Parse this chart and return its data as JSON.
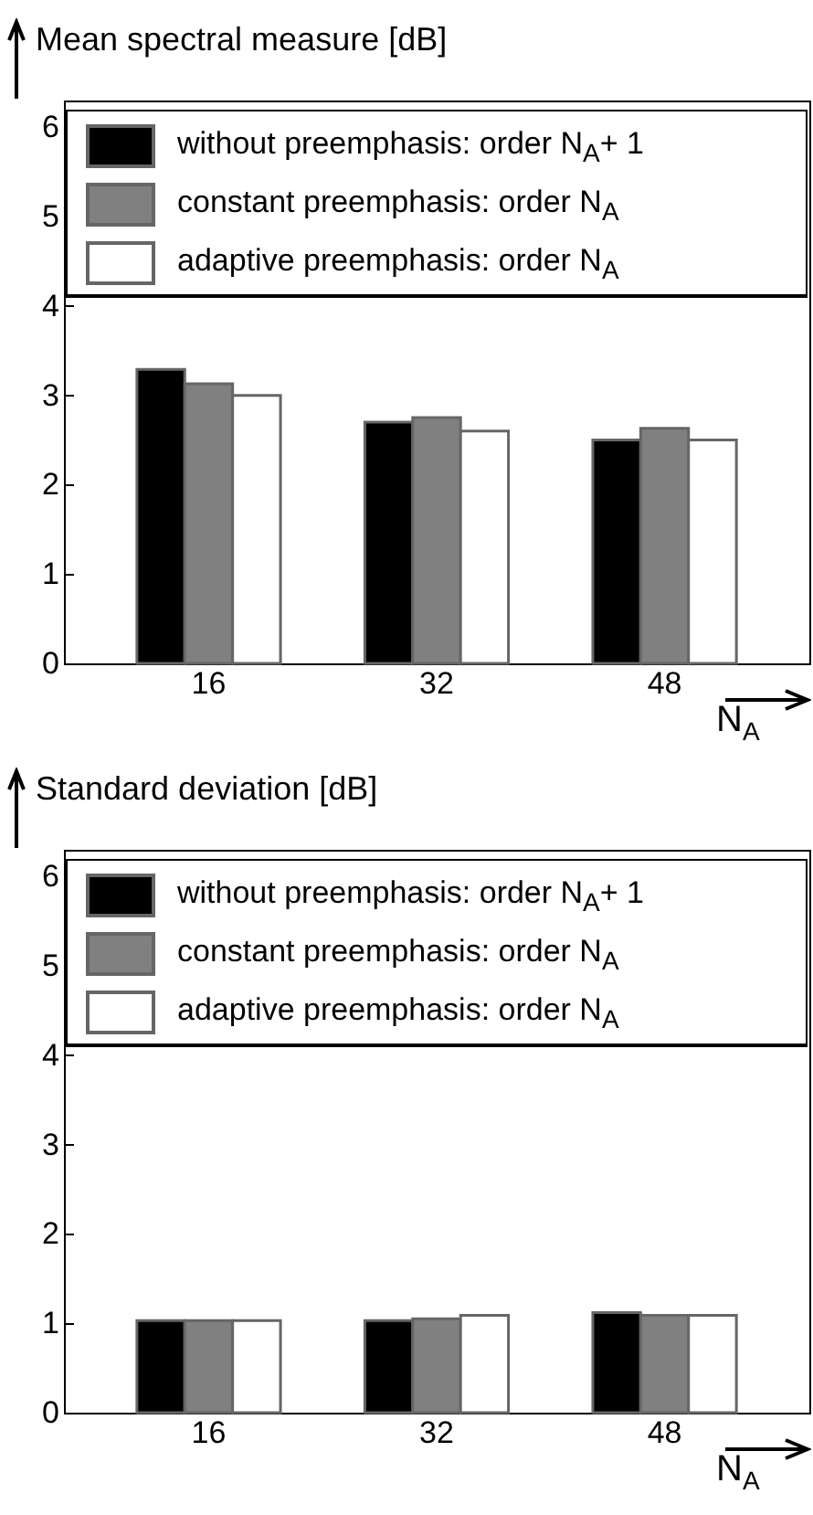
{
  "chart_data": [
    {
      "type": "bar",
      "ylabel": "Mean spectral measure [dB]",
      "xlabel": "N$_{A}$",
      "categories": [
        "16",
        "32",
        "48"
      ],
      "series": [
        {
          "name": "without preemphasis: order N$_{A}$+ 1",
          "color": "#000000",
          "values": [
            3.29,
            2.7,
            2.5
          ]
        },
        {
          "name": "constant preemphasis: order N$_{A}$",
          "color": "#808080",
          "values": [
            3.13,
            2.75,
            2.63
          ]
        },
        {
          "name": "adaptive preemphasis: order N$_{A}$",
          "color": "#ffffff",
          "values": [
            3.0,
            2.6,
            2.5
          ]
        }
      ],
      "ylim": [
        0,
        6.3
      ],
      "yticks": [
        0,
        1,
        2,
        3,
        4,
        5,
        6
      ],
      "legend": "top",
      "grid": false
    },
    {
      "type": "bar",
      "ylabel": "Standard deviation [dB]",
      "xlabel": "N$_{A}$",
      "categories": [
        "16",
        "32",
        "48"
      ],
      "series": [
        {
          "name": "without preemphasis: order N$_{A}$+ 1",
          "color": "#000000",
          "values": [
            1.03,
            1.03,
            1.12
          ]
        },
        {
          "name": "constant preemphasis: order N$_{A}$",
          "color": "#808080",
          "values": [
            1.03,
            1.05,
            1.09
          ]
        },
        {
          "name": "adaptive preemphasis: order N$_{A}$",
          "color": "#ffffff",
          "values": [
            1.03,
            1.09,
            1.09
          ]
        }
      ],
      "ylim": [
        0,
        6.3
      ],
      "yticks": [
        0,
        1,
        2,
        3,
        4,
        5,
        6
      ],
      "legend": "top",
      "grid": false
    }
  ]
}
